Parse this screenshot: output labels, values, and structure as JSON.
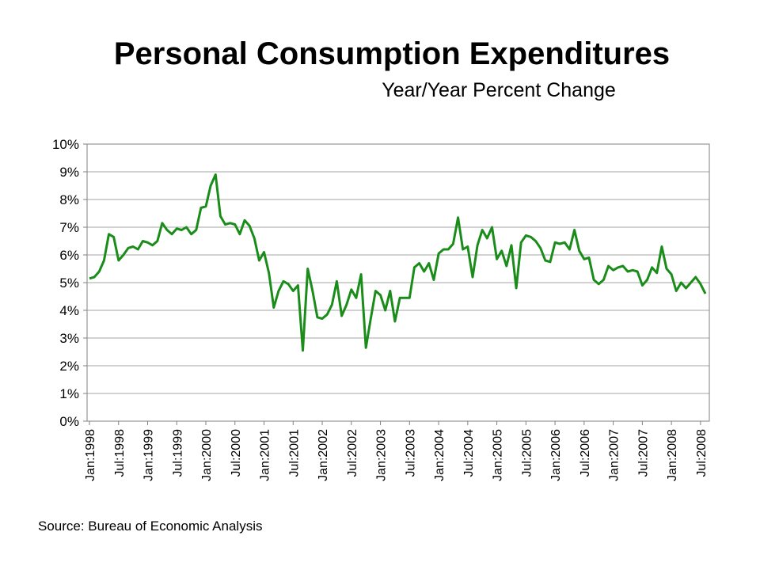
{
  "title": "Personal Consumption Expenditures",
  "subtitle": "Year/Year Percent Change",
  "source": "Source:  Bureau of Economic Analysis",
  "chart_data": {
    "type": "line",
    "ylim": [
      0,
      10
    ],
    "y_ticks": [
      "0%",
      "1%",
      "2%",
      "3%",
      "4%",
      "5%",
      "6%",
      "7%",
      "8%",
      "9%",
      "10%"
    ],
    "x_tick_labels": [
      "Jan:1998",
      "Jul:1998",
      "Jan:1999",
      "Jul:1999",
      "Jan:2000",
      "Jul:2000",
      "Jan:2001",
      "Jul:2001",
      "Jan:2002",
      "Jul:2002",
      "Jan:2003",
      "Jul:2003",
      "Jan:2004",
      "Jul:2004",
      "Jan:2005",
      "Jul:2005",
      "Jan:2006",
      "Jul:2006",
      "Jan:2007",
      "Jul:2007",
      "Jan:2008",
      "Jul:2008"
    ],
    "grid": true,
    "line_color": "#1a8c1a",
    "series": [
      {
        "values": [
          5.15,
          5.2,
          5.4,
          5.8,
          6.75,
          6.65,
          5.8,
          6.0,
          6.25,
          6.3,
          6.2,
          6.5,
          6.45,
          6.35,
          6.5,
          7.15,
          6.9,
          6.75,
          6.95,
          6.9,
          7.0,
          6.75,
          6.9,
          7.7,
          7.75,
          8.5,
          8.9,
          7.4,
          7.1,
          7.15,
          7.1,
          6.75,
          7.25,
          7.05,
          6.6,
          5.8,
          6.1,
          5.35,
          4.1,
          4.7,
          5.05,
          4.95,
          4.7,
          4.9,
          2.55,
          5.5,
          4.7,
          3.75,
          3.7,
          3.85,
          4.2,
          5.05,
          3.8,
          4.2,
          4.75,
          4.45,
          5.3,
          2.65,
          3.7,
          4.7,
          4.55,
          4.0,
          4.7,
          3.6,
          4.45,
          4.45,
          4.45,
          5.55,
          5.7,
          5.4,
          5.7,
          5.1,
          6.05,
          6.2,
          6.2,
          6.4,
          7.35,
          6.2,
          6.3,
          5.2,
          6.35,
          6.9,
          6.6,
          7.0,
          5.85,
          6.15,
          5.6,
          6.35,
          4.8,
          6.45,
          6.7,
          6.65,
          6.5,
          6.25,
          5.8,
          5.75,
          6.45,
          6.4,
          6.45,
          6.2,
          6.9,
          6.15,
          5.85,
          5.9,
          5.1,
          4.95,
          5.1,
          5.6,
          5.45,
          5.55,
          5.6,
          5.4,
          5.45,
          5.4,
          4.9,
          5.1,
          5.55,
          5.35,
          6.3,
          5.5,
          5.3,
          4.7,
          5.0,
          4.8,
          5.0,
          5.2,
          4.95,
          4.6
        ]
      }
    ]
  }
}
